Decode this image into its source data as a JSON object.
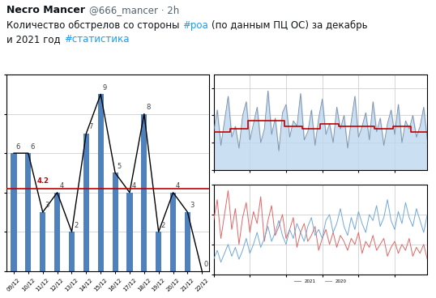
{
  "tweet": {
    "name": "Necro Mancer",
    "meta": "@666_mancer · 2h",
    "text_lines": [
      [
        {
          "text": "Количество обстрелов со стороны",
          "hashtag": false
        },
        {
          "text": "#роа",
          "hashtag": true
        },
        {
          "text": "(по данным ПЦ ОС) за декабрь",
          "hashtag": false
        }
      ],
      [
        {
          "text": "и 2021 год",
          "hashtag": false
        },
        {
          "text": "#статистика",
          "hashtag": true
        }
      ]
    ]
  },
  "chart_data": [
    {
      "type": "bar",
      "categories": [
        "09/12",
        "10/12",
        "11/12",
        "12/12",
        "13/12",
        "14/12",
        "15/12",
        "16/12",
        "17/12",
        "18/12",
        "19/12",
        "20/12",
        "21/12",
        "22/12"
      ],
      "values": [
        6,
        6,
        3,
        4,
        2,
        7,
        9,
        5,
        4,
        8,
        2,
        4,
        3,
        0
      ],
      "color": "#4f81bd",
      "mean_line": 4.2,
      "ylim": [
        0,
        10
      ],
      "yticks": [
        0,
        2,
        4,
        6,
        8,
        10
      ],
      "grid": true,
      "data_labels": true,
      "tick_labels": "x"
    },
    {
      "type": "line",
      "x": [
        0,
        1,
        2,
        3,
        4,
        5,
        6,
        7,
        8,
        9,
        10,
        11,
        12,
        13,
        14,
        15,
        16,
        17,
        18,
        19,
        20,
        21,
        22,
        23,
        24,
        25,
        26,
        27,
        28,
        29,
        30,
        31,
        32,
        33,
        34,
        35,
        36,
        37,
        38,
        39,
        40,
        41,
        42,
        43,
        44,
        45,
        46,
        47,
        48,
        49,
        50,
        51,
        52,
        53,
        54,
        55,
        56,
        57,
        58,
        59
      ],
      "series": [
        {
          "type": "area",
          "color": "#7f8fa6",
          "values": [
            14,
            22,
            9,
            18,
            27,
            12,
            16,
            8,
            20,
            25,
            11,
            17,
            23,
            10,
            15,
            29,
            13,
            19,
            7,
            21,
            24,
            12,
            18,
            16,
            28,
            11,
            14,
            22,
            9,
            19,
            26,
            13,
            17,
            10,
            23,
            15,
            20,
            8,
            18,
            27,
            12,
            16,
            21,
            11,
            25,
            14,
            19,
            9,
            17,
            22,
            13,
            24,
            10,
            18,
            15,
            20,
            12,
            16,
            23,
            11
          ]
        },
        {
          "type": "step",
          "color": "#c00000",
          "values": [
            14,
            14,
            14,
            14,
            14,
            15,
            15,
            15,
            15,
            15,
            18,
            18,
            18,
            18,
            18,
            18,
            18,
            18,
            18,
            18,
            16,
            16,
            16,
            16,
            16,
            15,
            15,
            15,
            15,
            15,
            17,
            17,
            17,
            17,
            17,
            16,
            16,
            16,
            16,
            16,
            16,
            16,
            16,
            16,
            16,
            15,
            15,
            15,
            15,
            15,
            16,
            16,
            16,
            16,
            16,
            14,
            14,
            14,
            14,
            14
          ]
        }
      ],
      "xlim": [
        0,
        59
      ],
      "xticks": [
        0,
        10,
        20,
        30,
        40,
        50
      ],
      "ylim": [
        0,
        35
      ],
      "yticks": [
        0,
        10,
        20,
        30
      ],
      "grid": true,
      "tick_labels": false
    },
    {
      "type": "line",
      "x": [
        0,
        1,
        2,
        3,
        4,
        5,
        6,
        7,
        8,
        9,
        10,
        11,
        12,
        13,
        14,
        15,
        16,
        17,
        18,
        19,
        20,
        21,
        22,
        23,
        24,
        25,
        26,
        27,
        28,
        29,
        30,
        31,
        32,
        33,
        34,
        35,
        36,
        37,
        38,
        39,
        40,
        41,
        42,
        43,
        44,
        45,
        46,
        47,
        48,
        49,
        50,
        51,
        52,
        53,
        54,
        55,
        56,
        57,
        58,
        59
      ],
      "series": [
        {
          "name": "2021",
          "color": "#e06666",
          "values": [
            18,
            25,
            12,
            20,
            28,
            15,
            22,
            10,
            19,
            24,
            14,
            21,
            17,
            26,
            11,
            18,
            23,
            13,
            16,
            20,
            12,
            15,
            19,
            9,
            14,
            17,
            11,
            13,
            16,
            8,
            12,
            15,
            10,
            14,
            9,
            13,
            11,
            8,
            12,
            10,
            14,
            7,
            11,
            9,
            13,
            8,
            10,
            12,
            6,
            9,
            11,
            7,
            10,
            8,
            12,
            6,
            9,
            7,
            10,
            5
          ]
        },
        {
          "name": "2020",
          "color": "#6fa8dc",
          "values": [
            5,
            8,
            4,
            7,
            10,
            6,
            9,
            5,
            8,
            12,
            7,
            10,
            14,
            9,
            12,
            16,
            11,
            14,
            18,
            13,
            10,
            15,
            12,
            17,
            14,
            11,
            16,
            19,
            13,
            15,
            12,
            18,
            20,
            14,
            17,
            22,
            16,
            13,
            19,
            15,
            21,
            17,
            14,
            20,
            18,
            23,
            16,
            19,
            25,
            18,
            15,
            21,
            17,
            24,
            19,
            16,
            22,
            18,
            14,
            20
          ]
        }
      ],
      "xlim": [
        0,
        59
      ],
      "xticks": [
        0,
        10,
        20,
        30,
        40,
        50
      ],
      "ylim": [
        0,
        30
      ],
      "yticks": [
        0,
        10,
        20,
        30
      ],
      "grid": true,
      "legend": "upper center",
      "tick_labels": false
    }
  ]
}
